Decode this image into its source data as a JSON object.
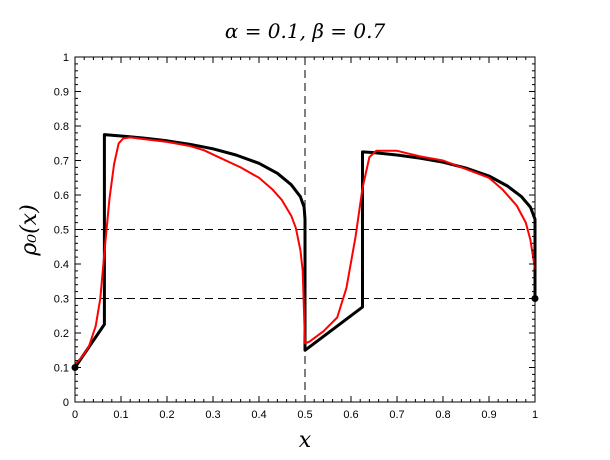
{
  "chart_data": {
    "type": "line",
    "title": "α = 0.1,  β = 0.7",
    "xlabel": "x",
    "ylabel": "ρ₀(x)",
    "xlim": [
      0,
      1
    ],
    "ylim": [
      0,
      1
    ],
    "xticks": [
      "0",
      "0.1",
      "0.2",
      "0.3",
      "0.4",
      "0.5",
      "0.6",
      "0.7",
      "0.8",
      "0.9",
      "1"
    ],
    "yticks": [
      "0",
      "0.1",
      "0.2",
      "0.3",
      "0.4",
      "0.5",
      "0.6",
      "0.7",
      "0.8",
      "0.9",
      "1"
    ],
    "grid": false,
    "reference_lines": [
      {
        "orientation": "horizontal",
        "value": 0.5,
        "style": "dashed"
      },
      {
        "orientation": "horizontal",
        "value": 0.3,
        "style": "dashed"
      },
      {
        "orientation": "vertical",
        "value": 0.5,
        "style": "dashed"
      }
    ],
    "series": [
      {
        "color": "#000000",
        "style": "thick",
        "points": [
          [
            0.0,
            0.1
          ],
          [
            0.064,
            0.225
          ],
          [
            0.064,
            0.775
          ],
          [
            0.1,
            0.771
          ],
          [
            0.15,
            0.765
          ],
          [
            0.2,
            0.757
          ],
          [
            0.25,
            0.747
          ],
          [
            0.3,
            0.734
          ],
          [
            0.35,
            0.716
          ],
          [
            0.4,
            0.692
          ],
          [
            0.44,
            0.663
          ],
          [
            0.47,
            0.63
          ],
          [
            0.49,
            0.595
          ],
          [
            0.498,
            0.565
          ],
          [
            0.5,
            0.53
          ],
          [
            0.5,
            0.15
          ],
          [
            0.625,
            0.275
          ],
          [
            0.625,
            0.725
          ],
          [
            0.65,
            0.723
          ],
          [
            0.7,
            0.716
          ],
          [
            0.75,
            0.707
          ],
          [
            0.8,
            0.695
          ],
          [
            0.85,
            0.678
          ],
          [
            0.9,
            0.655
          ],
          [
            0.94,
            0.626
          ],
          [
            0.97,
            0.596
          ],
          [
            0.99,
            0.565
          ],
          [
            1.0,
            0.53
          ],
          [
            1.0,
            0.3
          ]
        ]
      },
      {
        "color": "#ff0000",
        "style": "thin",
        "points": [
          [
            0.0,
            0.11
          ],
          [
            0.015,
            0.13
          ],
          [
            0.03,
            0.16
          ],
          [
            0.045,
            0.22
          ],
          [
            0.055,
            0.3
          ],
          [
            0.065,
            0.45
          ],
          [
            0.075,
            0.59
          ],
          [
            0.085,
            0.69
          ],
          [
            0.095,
            0.75
          ],
          [
            0.105,
            0.764
          ],
          [
            0.12,
            0.767
          ],
          [
            0.15,
            0.762
          ],
          [
            0.2,
            0.754
          ],
          [
            0.25,
            0.742
          ],
          [
            0.28,
            0.73
          ],
          [
            0.32,
            0.705
          ],
          [
            0.36,
            0.68
          ],
          [
            0.4,
            0.65
          ],
          [
            0.43,
            0.615
          ],
          [
            0.45,
            0.585
          ],
          [
            0.47,
            0.54
          ],
          [
            0.48,
            0.505
          ],
          [
            0.49,
            0.44
          ],
          [
            0.495,
            0.38
          ],
          [
            0.5,
            0.17
          ],
          [
            0.51,
            0.175
          ],
          [
            0.54,
            0.205
          ],
          [
            0.57,
            0.245
          ],
          [
            0.59,
            0.33
          ],
          [
            0.61,
            0.48
          ],
          [
            0.625,
            0.62
          ],
          [
            0.64,
            0.71
          ],
          [
            0.655,
            0.728
          ],
          [
            0.7,
            0.728
          ],
          [
            0.75,
            0.712
          ],
          [
            0.8,
            0.7
          ],
          [
            0.85,
            0.675
          ],
          [
            0.9,
            0.65
          ],
          [
            0.93,
            0.615
          ],
          [
            0.96,
            0.57
          ],
          [
            0.98,
            0.52
          ],
          [
            0.99,
            0.47
          ],
          [
            1.0,
            0.385
          ]
        ]
      }
    ],
    "markers": [
      {
        "x": 0.0,
        "y": 0.1
      },
      {
        "x": 1.0,
        "y": 0.3
      }
    ]
  }
}
